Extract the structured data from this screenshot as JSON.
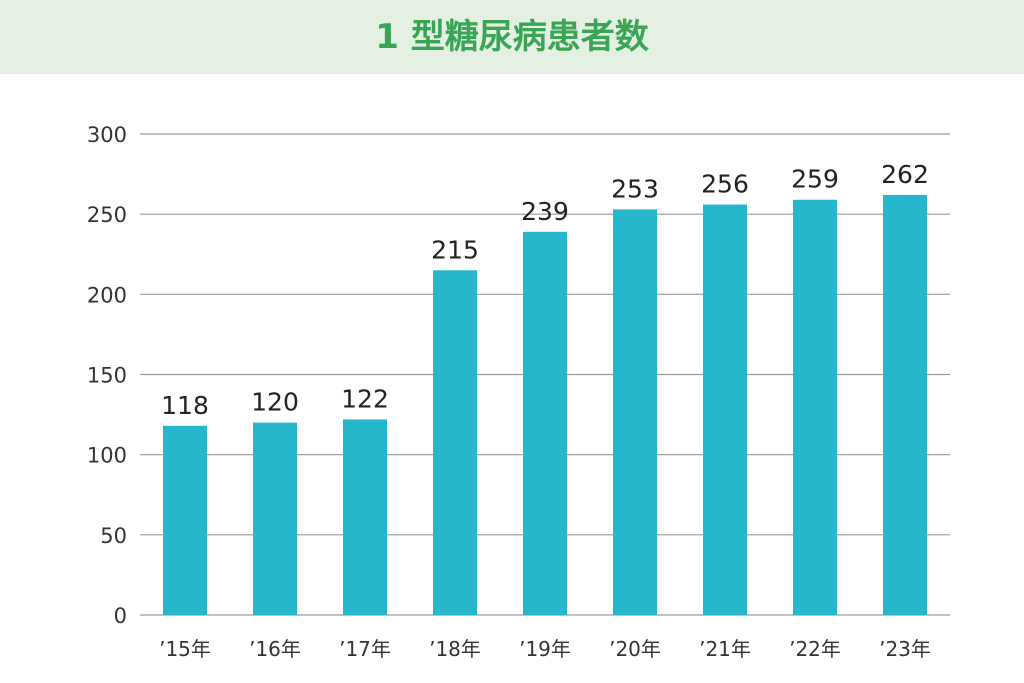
{
  "title": "1 型糖尿病患者数",
  "colors": {
    "bar": "#26b7cc",
    "title_text": "#3aa655",
    "title_band": "#e3f0e2",
    "grid": "#9a9a9a",
    "axis_text": "#333333",
    "value_text": "#222222"
  },
  "chart_data": {
    "type": "bar",
    "title": "1 型糖尿病患者数",
    "categories": [
      "’15年",
      "’16年",
      "’17年",
      "’18年",
      "’19年",
      "’20年",
      "’21年",
      "’22年",
      "’23年"
    ],
    "values": [
      118,
      120,
      122,
      215,
      239,
      253,
      256,
      259,
      262
    ],
    "data_labels": [
      "118",
      "120",
      "122",
      "215",
      "239",
      "253",
      "256",
      "259",
      "262"
    ],
    "ylim": [
      0,
      300
    ],
    "yticks": [
      0,
      50,
      100,
      150,
      200,
      250,
      300
    ],
    "ytick_labels": [
      "0",
      "50",
      "100",
      "150",
      "200",
      "250",
      "300"
    ],
    "grid": true,
    "xlabel": "",
    "ylabel": ""
  }
}
